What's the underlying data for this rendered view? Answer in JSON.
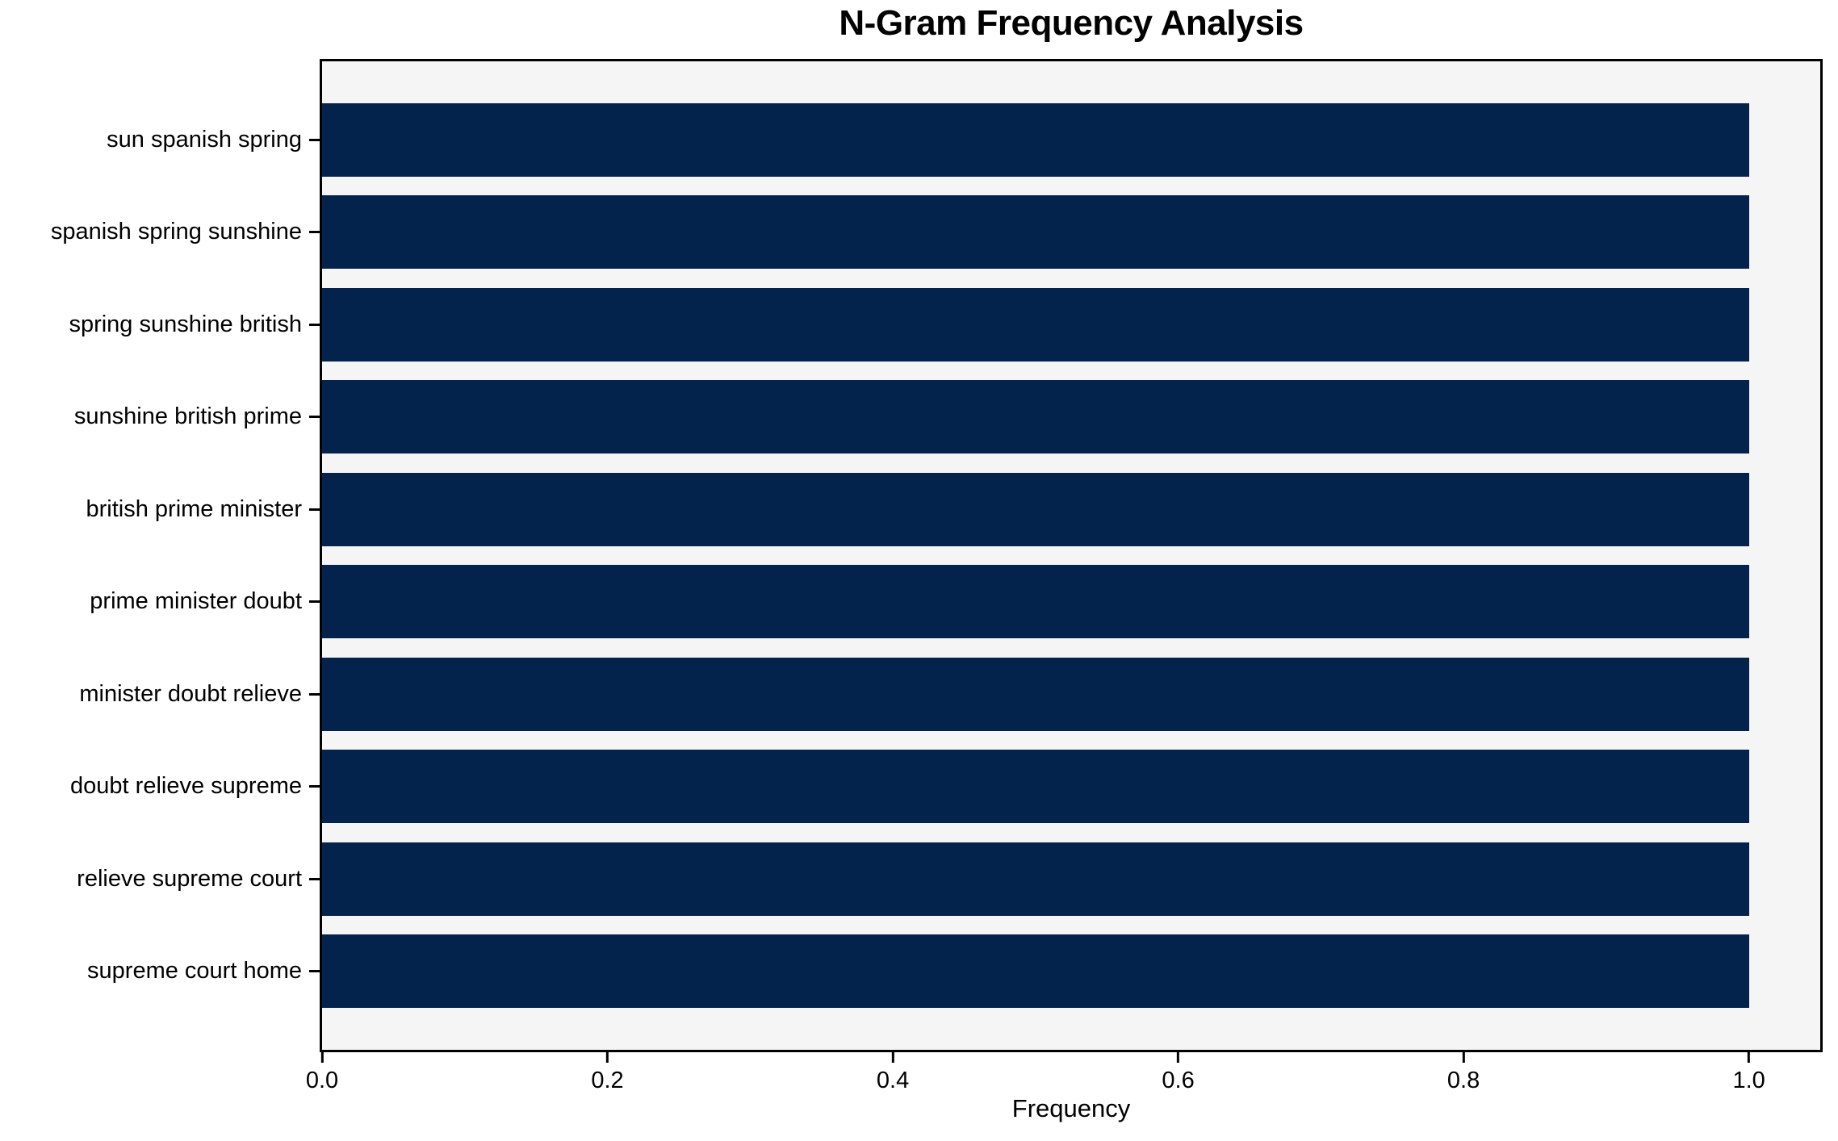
{
  "chart_data": {
    "type": "bar",
    "orientation": "horizontal",
    "title": "N-Gram Frequency Analysis",
    "xlabel": "Frequency",
    "ylabel": "",
    "categories": [
      "sun spanish spring",
      "spanish spring sunshine",
      "spring sunshine british",
      "sunshine british prime",
      "british prime minister",
      "prime minister doubt",
      "minister doubt relieve",
      "doubt relieve supreme",
      "relieve supreme court",
      "supreme court home"
    ],
    "values": [
      1.0,
      1.0,
      1.0,
      1.0,
      1.0,
      1.0,
      1.0,
      1.0,
      1.0,
      1.0
    ],
    "xlim": [
      0,
      1.05
    ],
    "xticks": [
      "0.0",
      "0.2",
      "0.4",
      "0.6",
      "0.8",
      "1.0"
    ],
    "bar_color": "#03234c",
    "plot_bg": "#f5f5f5",
    "axis_color": "#000000",
    "grid": false,
    "legend": null
  }
}
